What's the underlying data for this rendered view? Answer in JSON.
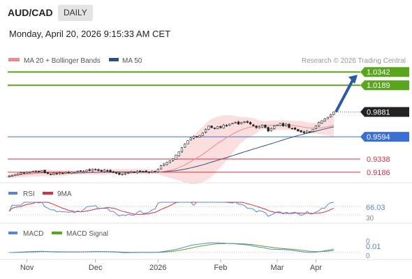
{
  "header": {
    "symbol": "AUD/CAD",
    "timeframe": "DAILY",
    "timestamp": "Monday, April 20, 2026 9:15:33 AM CET"
  },
  "colors": {
    "ma20_band": "#f08a8a",
    "ma50": "#2d4f8a",
    "resistance": "#5aa51e",
    "support": "#3b6fd6",
    "support_red": "#d9303a",
    "bull_candle": "#ffffff",
    "bear_candle": "#222222",
    "arrow": "#2c5aa8",
    "rsi": "#5b84d8",
    "rsi_ma": "#d9303a",
    "macd": "#5b84d8",
    "macd_signal": "#5aa51e"
  },
  "chart_data": {
    "type": "candlestick",
    "legend": [
      {
        "name": "MA 20 + Bollinger Bands",
        "color": "#f08a8a"
      },
      {
        "name": "MA 50",
        "color": "#2d4f8a"
      }
    ],
    "credit": "Research © 2026 Trading Central",
    "x_ticks": [
      "Nov",
      "Dec",
      "2026",
      "Feb",
      "Mar",
      "Apr"
    ],
    "y_range": [
      0.908,
      1.04
    ],
    "levels": [
      {
        "value": 1.0342,
        "label": "1.0342",
        "kind": "resistance"
      },
      {
        "value": 1.0189,
        "label": "1.0189",
        "kind": "resistance"
      },
      {
        "value": 0.9881,
        "label": "0.9881",
        "kind": "last"
      },
      {
        "value": 0.9594,
        "label": "0.9594",
        "kind": "pivot"
      },
      {
        "value": 0.9338,
        "label": "0.9338",
        "kind": "support"
      },
      {
        "value": 0.9186,
        "label": "0.9186",
        "kind": "support"
      }
    ],
    "closes": [
      0.914,
      0.9145,
      0.916,
      0.917,
      0.918,
      0.9175,
      0.919,
      0.9185,
      0.9195,
      0.92,
      0.919,
      0.9205,
      0.918,
      0.917,
      0.916,
      0.9175,
      0.9165,
      0.918,
      0.917,
      0.9185,
      0.9175,
      0.919,
      0.9185,
      0.9195,
      0.92,
      0.9195,
      0.921,
      0.9205,
      0.922,
      0.9215,
      0.9205,
      0.9195,
      0.921,
      0.92,
      0.919,
      0.9185,
      0.9175,
      0.916,
      0.9165,
      0.9175,
      0.918,
      0.919,
      0.9185,
      0.9195,
      0.92,
      0.9195,
      0.919,
      0.9185,
      0.9195,
      0.919,
      0.922,
      0.926,
      0.928,
      0.93,
      0.932,
      0.934,
      0.938,
      0.942,
      0.947,
      0.951,
      0.955,
      0.958,
      0.96,
      0.959,
      0.961,
      0.964,
      0.968,
      0.972,
      0.97,
      0.969,
      0.971,
      0.97,
      0.973,
      0.972,
      0.974,
      0.975,
      0.976,
      0.974,
      0.976,
      0.977,
      0.976,
      0.974,
      0.972,
      0.97,
      0.971,
      0.973,
      0.97,
      0.966,
      0.969,
      0.972,
      0.973,
      0.975,
      0.972,
      0.974,
      0.97,
      0.969,
      0.968,
      0.966,
      0.965,
      0.964,
      0.966,
      0.965,
      0.968,
      0.972,
      0.976,
      0.978,
      0.98,
      0.982,
      0.985,
      0.9881
    ],
    "rsi": {
      "label": "RSI",
      "ma_label": "9MA",
      "value_label": "66.03",
      "lower_label": "30"
    },
    "macd": {
      "label": "MACD",
      "signal_label": "MACD Signal",
      "top_label": "0",
      "value_label": "0.01",
      "zero_label": "0"
    }
  }
}
